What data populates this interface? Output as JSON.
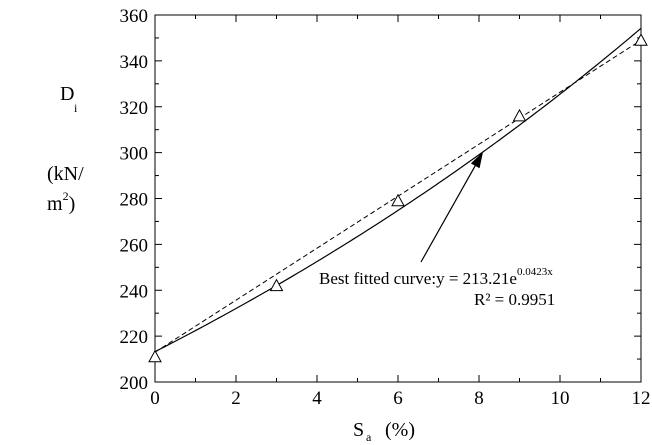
{
  "chart_data": {
    "type": "scatter",
    "xlabel": {
      "main": "S",
      "sub": "a",
      "unit": "(%)"
    },
    "ylabel": {
      "main": "D",
      "sub": "i",
      "unit_line1": "(kN/",
      "unit_line2_main": "m",
      "unit_line2_sup": "2",
      "unit_line2_close": ")"
    },
    "xlim": [
      0,
      12
    ],
    "ylim": [
      200,
      360
    ],
    "x_ticks": [
      0,
      2,
      4,
      6,
      8,
      10,
      12
    ],
    "y_ticks": [
      200,
      220,
      240,
      260,
      280,
      300,
      320,
      340,
      360
    ],
    "grid": false,
    "series": [
      {
        "marker": "open-triangle",
        "x": [
          0,
          3,
          6,
          9,
          12
        ],
        "y": [
          211,
          242,
          279,
          316,
          349
        ]
      }
    ],
    "fitted_curve": {
      "equation": "y = 213.21e^(0.0423x)",
      "a": 213.21,
      "b": 0.0423,
      "line_style": "solid"
    },
    "linear_trend": {
      "line_style": "dashed",
      "x": [
        0,
        12
      ],
      "y": [
        213,
        349
      ]
    },
    "annotation": {
      "label_prefix": "Best fitted curve:y = 213.21e",
      "label_exponent": "0.0423x",
      "r_squared": "R² = 0.9951",
      "arrow_target_x": 8.1
    }
  }
}
